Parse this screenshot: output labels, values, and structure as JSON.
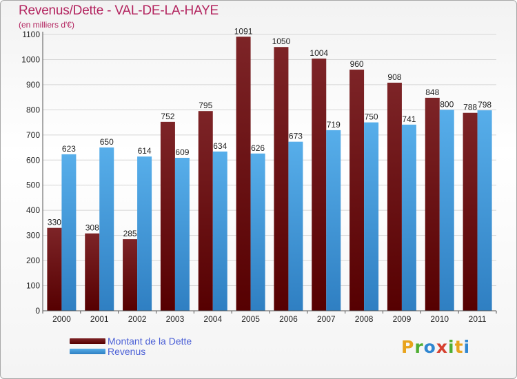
{
  "title": "Revenus/Dette - VAL-DE-LA-HAYE",
  "subtitle": "(en milliers d'€)",
  "colors": {
    "dette": "#6e0f12",
    "revenus": "#4ea3e3",
    "title": "#b3245f",
    "legend_text": "#4a5fd6"
  },
  "logo": {
    "letters": [
      "P",
      "r",
      "o",
      "x",
      "i",
      "t",
      "i"
    ],
    "colors": [
      "#e8a31c",
      "#4fae33",
      "#2f86d0",
      "#d6402f",
      "#4fae33",
      "#e8a31c",
      "#2f86d0"
    ]
  },
  "chart_data": {
    "type": "bar",
    "categories": [
      "2000",
      "2001",
      "2002",
      "2003",
      "2004",
      "2005",
      "2006",
      "2007",
      "2008",
      "2009",
      "2010",
      "2011"
    ],
    "series": [
      {
        "name": "Montant de la Dette",
        "values": [
          330,
          308,
          285,
          752,
          795,
          1091,
          1050,
          1004,
          960,
          908,
          848,
          788
        ]
      },
      {
        "name": "Revenus",
        "values": [
          623,
          650,
          614,
          609,
          634,
          626,
          673,
          719,
          750,
          741,
          800,
          798
        ]
      }
    ],
    "yticks": [
      0,
      100,
      200,
      300,
      400,
      500,
      600,
      700,
      800,
      900,
      1000,
      1100
    ],
    "ylim": [
      0,
      1100
    ],
    "grid": true,
    "legend": "bottom-left"
  }
}
